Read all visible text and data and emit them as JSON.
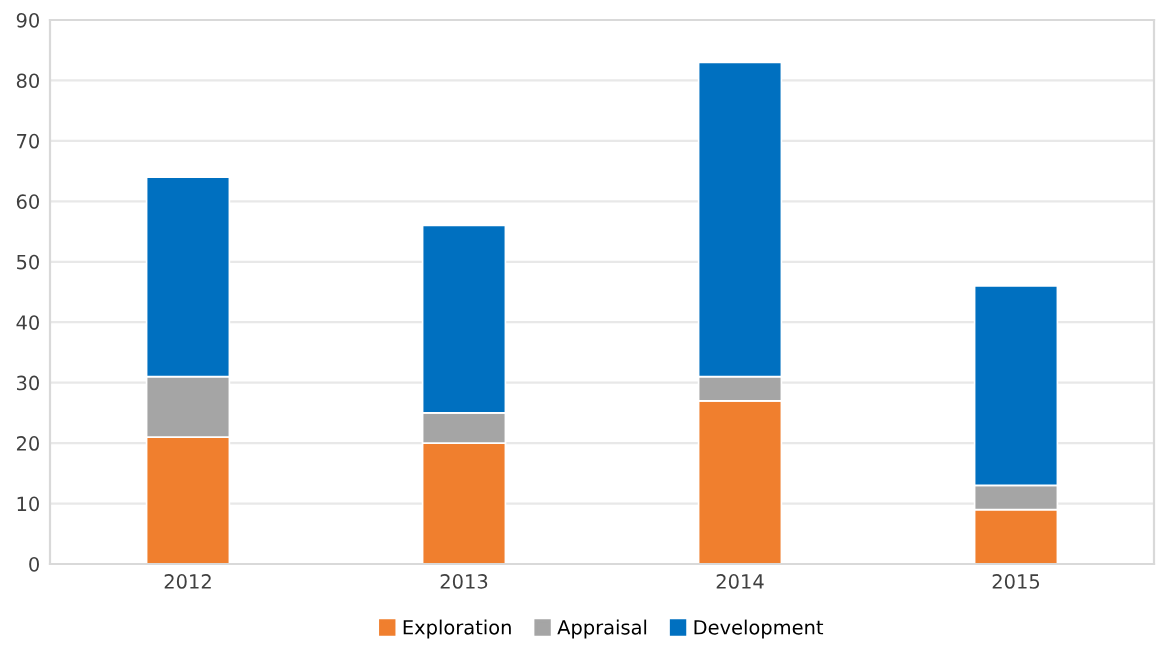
{
  "chart_data": {
    "type": "bar",
    "stacked": true,
    "categories": [
      "2012",
      "2013",
      "2014",
      "2015"
    ],
    "series": [
      {
        "name": "Exploration",
        "color": "#f07f2e",
        "values": [
          21,
          20,
          27,
          9
        ]
      },
      {
        "name": "Appraisal",
        "color": "#a5a5a5",
        "values": [
          10,
          5,
          4,
          4
        ]
      },
      {
        "name": "Development",
        "color": "#0070c0",
        "values": [
          33,
          31,
          52,
          33
        ]
      }
    ],
    "ylim": [
      0,
      90
    ],
    "yticks": [
      0,
      10,
      20,
      30,
      40,
      50,
      60,
      70,
      80,
      90
    ],
    "grid": "y",
    "legend": "bottom"
  }
}
